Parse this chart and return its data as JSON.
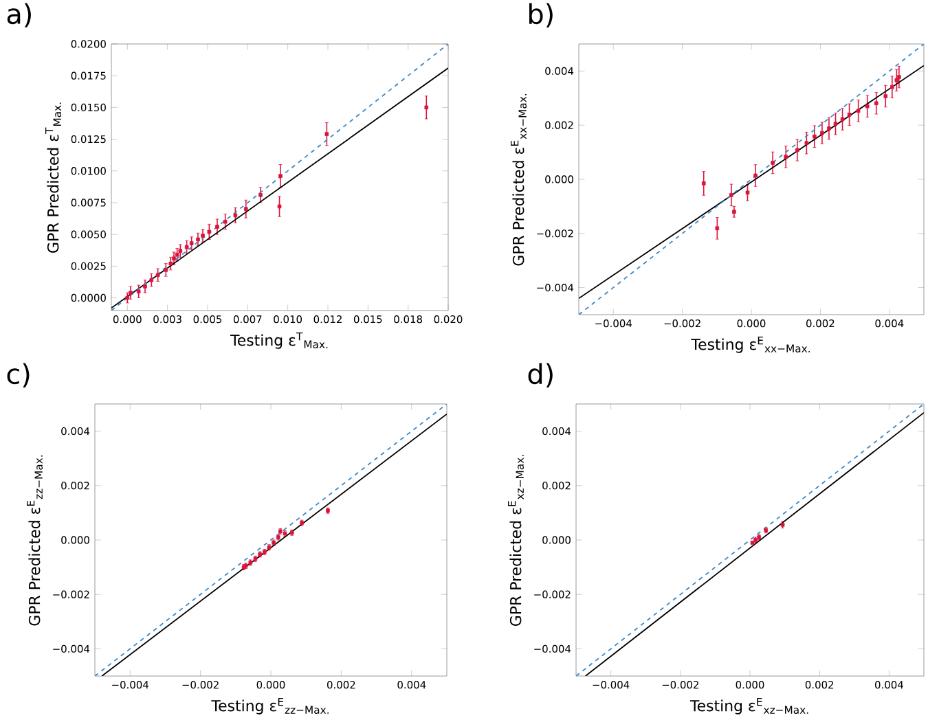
{
  "chart_data": [
    {
      "type": "scatter",
      "title": "a)",
      "xlabel": "Testing ε$^{T}$$_{Max.}$",
      "ylabel": "GPR Predicted ε$^{T}$$_{Max.}$",
      "xlim": [
        -0.001,
        0.02
      ],
      "ylim": [
        -0.001,
        0.02
      ],
      "xticks": [
        {
          "value": 0,
          "label": "0.000"
        },
        {
          "value": 0.0025,
          "label": "0.003"
        },
        {
          "value": 0.005,
          "label": "0.005"
        },
        {
          "value": 0.0075,
          "label": "0.007"
        },
        {
          "value": 0.01,
          "label": "0.010"
        },
        {
          "value": 0.0125,
          "label": "0.012"
        },
        {
          "value": 0.015,
          "label": "0.015"
        },
        {
          "value": 0.0175,
          "label": "0.018"
        },
        {
          "value": 0.02,
          "label": "0.020"
        }
      ],
      "yticks": [
        {
          "value": 0,
          "label": "0.0000"
        },
        {
          "value": 0.0025,
          "label": "0.0025"
        },
        {
          "value": 0.005,
          "label": "0.0050"
        },
        {
          "value": 0.0075,
          "label": "0.0075"
        },
        {
          "value": 0.01,
          "label": "0.0100"
        },
        {
          "value": 0.0125,
          "label": "0.0125"
        },
        {
          "value": 0.015,
          "label": "0.0150"
        },
        {
          "value": 0.0175,
          "label": "0.0175"
        },
        {
          "value": 0.02,
          "label": "0.0200"
        }
      ],
      "series": [
        {
          "type": "scatter",
          "color": "#dc143c",
          "marker": "square",
          "x": [
            0.01864,
            0.01243,
            0.00954,
            0.00948,
            0.0083,
            0.00739,
            0.00673,
            0.0061,
            0.0056,
            0.0051,
            0.0047,
            0.0044,
            0.004,
            0.0037,
            0.0033,
            0.0031,
            0.0029,
            0.0027,
            0.0024,
            0.0019,
            0.0015,
            0.0011,
            0.0007,
            0.0002,
            0.0
          ],
          "values": [
            0.015,
            0.0129,
            0.0096,
            0.0072,
            0.0081,
            0.007,
            0.0065,
            0.006,
            0.0056,
            0.0052,
            0.0049,
            0.0046,
            0.0043,
            0.004,
            0.0037,
            0.0034,
            0.0031,
            0.0027,
            0.0022,
            0.0018,
            0.0014,
            0.0009,
            0.0005,
            0.0004,
            0.0
          ],
          "errors": [
            0.0009,
            0.0009,
            0.0009,
            0.0008,
            0.0006,
            0.0007,
            0.0006,
            0.0006,
            0.0006,
            0.0006,
            0.0005,
            0.0005,
            0.0005,
            0.0005,
            0.0005,
            0.0005,
            0.0005,
            0.0005,
            0.0005,
            0.0005,
            0.0005,
            0.0005,
            0.0005,
            0.0005,
            0.0004
          ]
        },
        {
          "type": "line",
          "color": "#000000",
          "line_style": "solid",
          "x": [
            -0.001,
            0.02
          ],
          "values": [
            -0.0008,
            0.0181
          ]
        },
        {
          "type": "line",
          "color": "#3a87c8",
          "line_style": "dashed",
          "x": [
            -0.001,
            0.02
          ],
          "values": [
            -0.001,
            0.02
          ]
        }
      ]
    },
    {
      "type": "scatter",
      "title": "b)",
      "xlabel": "Testing ε$^{E}$$_{xx−Max.}$",
      "ylabel": "GPR Predicted ε$^{E}$$_{xx−Max.}$",
      "xlim": [
        -0.005,
        0.005
      ],
      "ylim": [
        -0.005,
        0.005
      ],
      "xticks": [
        {
          "value": -0.004,
          "label": "−0.004"
        },
        {
          "value": -0.002,
          "label": "−0.002"
        },
        {
          "value": 0,
          "label": "0.000"
        },
        {
          "value": 0.002,
          "label": "0.002"
        },
        {
          "value": 0.004,
          "label": "0.004"
        }
      ],
      "yticks": [
        {
          "value": -0.004,
          "label": "−0.004"
        },
        {
          "value": -0.002,
          "label": "−0.002"
        },
        {
          "value": 0,
          "label": "0.000"
        },
        {
          "value": 0.002,
          "label": "0.002"
        },
        {
          "value": 0.004,
          "label": "0.004"
        }
      ],
      "series": [
        {
          "type": "scatter",
          "color": "#dc143c",
          "marker": "square",
          "x": [
            -0.00138,
            -0.00099,
            -0.00058,
            -0.0005,
            -0.00011,
            0.00012,
            0.00062,
            0.001,
            0.00133,
            0.0016,
            0.00183,
            0.00205,
            0.00225,
            0.00244,
            0.00264,
            0.00284,
            0.0031,
            0.00336,
            0.00362,
            0.00389,
            0.00408,
            0.00421,
            0.00428
          ],
          "values": [
            -0.00015,
            -0.00181,
            -0.00058,
            -0.0012,
            -0.00049,
            0.00014,
            0.00061,
            0.00083,
            0.00108,
            0.00134,
            0.00158,
            0.00171,
            0.00188,
            0.00205,
            0.00222,
            0.00239,
            0.00253,
            0.0027,
            0.00281,
            0.00307,
            0.00341,
            0.00366,
            0.00378
          ],
          "errors": [
            0.00044,
            0.0004,
            0.0004,
            0.0002,
            0.0003,
            0.0004,
            0.0004,
            0.0004,
            0.0004,
            0.0004,
            0.0004,
            0.0004,
            0.0004,
            0.0004,
            0.0004,
            0.0004,
            0.0004,
            0.0004,
            0.0004,
            0.0004,
            0.0004,
            0.0004,
            0.0004
          ]
        },
        {
          "type": "line",
          "color": "#000000",
          "line_style": "solid",
          "x": [
            -0.005,
            0.005
          ],
          "values": [
            -0.0044,
            0.0042
          ]
        },
        {
          "type": "line",
          "color": "#3a87c8",
          "line_style": "dashed",
          "x": [
            -0.005,
            0.005
          ],
          "values": [
            -0.005,
            0.005
          ]
        }
      ]
    },
    {
      "type": "scatter",
      "title": "c)",
      "xlabel": "Testing ε$^{E}$$_{zz−Max.}$",
      "ylabel": "GPR Predicted ε$^{E}$$_{zz−Max.}$",
      "xlim": [
        -0.005,
        0.005
      ],
      "ylim": [
        -0.005,
        0.005
      ],
      "xticks": [
        {
          "value": -0.004,
          "label": "−0.004"
        },
        {
          "value": -0.002,
          "label": "−0.002"
        },
        {
          "value": 0,
          "label": "0.000"
        },
        {
          "value": 0.002,
          "label": "0.002"
        },
        {
          "value": 0.004,
          "label": "0.004"
        }
      ],
      "yticks": [
        {
          "value": -0.004,
          "label": "−0.004"
        },
        {
          "value": -0.002,
          "label": "−0.002"
        },
        {
          "value": 0,
          "label": "0.000"
        },
        {
          "value": 0.002,
          "label": "0.002"
        },
        {
          "value": 0.004,
          "label": "0.004"
        }
      ],
      "series": [
        {
          "type": "scatter",
          "color": "#dc143c",
          "marker": "square",
          "x": [
            0.00162,
            0.00088,
            0.0006,
            0.0004,
            0.00027,
            0.00021,
            8e-05,
            -5e-05,
            -0.00018,
            -0.00031,
            -0.00044,
            -0.00058,
            -0.00071,
            -0.00077
          ],
          "values": [
            0.00108,
            0.00063,
            0.00027,
            0.00024,
            0.00032,
            0.0001,
            -0.0001,
            -0.00027,
            -0.00044,
            -0.00053,
            -0.00069,
            -0.00083,
            -0.00095,
            -0.001
          ],
          "errors": [
            0.0001,
            0.0001,
            0.0001,
            0.0001,
            0.0001,
            0.0001,
            0.0001,
            0.0001,
            0.0001,
            0.0001,
            0.0001,
            0.0001,
            0.0001,
            0.0001
          ]
        },
        {
          "type": "line",
          "color": "#000000",
          "line_style": "solid",
          "x": [
            -0.0048,
            0.005
          ],
          "values": [
            -0.005,
            0.00463
          ]
        },
        {
          "type": "line",
          "color": "#3a87c8",
          "line_style": "dashed",
          "x": [
            -0.005,
            0.005
          ],
          "values": [
            -0.005,
            0.005
          ]
        }
      ]
    },
    {
      "type": "scatter",
      "title": "d)",
      "xlabel": "Testing ε$^{E}$$_{xz−Max.}$",
      "ylabel": "GPR Predicted ε$^{E}$$_{xz−Max.}$",
      "xlim": [
        -0.005,
        0.005
      ],
      "ylim": [
        -0.005,
        0.005
      ],
      "xticks": [
        {
          "value": -0.004,
          "label": "−0.004"
        },
        {
          "value": -0.002,
          "label": "−0.002"
        },
        {
          "value": 0,
          "label": "0.000"
        },
        {
          "value": 0.002,
          "label": "0.002"
        },
        {
          "value": 0.004,
          "label": "0.004"
        }
      ],
      "yticks": [
        {
          "value": -0.004,
          "label": "−0.004"
        },
        {
          "value": -0.002,
          "label": "−0.002"
        },
        {
          "value": 0,
          "label": "0.000"
        },
        {
          "value": 0.002,
          "label": "0.002"
        },
        {
          "value": 0.004,
          "label": "0.004"
        }
      ],
      "series": [
        {
          "type": "scatter",
          "color": "#dc143c",
          "marker": "square",
          "x": [
            0.00094,
            0.00046,
            0.00026,
            0.00016,
            7e-05
          ],
          "values": [
            0.00056,
            0.00036,
            0.0001,
            0.0,
            -0.0001
          ],
          "errors": [
            0.00012,
            0.0001,
            0.0001,
            0.0001,
            5e-05
          ]
        },
        {
          "type": "line",
          "color": "#000000",
          "line_style": "solid",
          "x": [
            -0.00473,
            0.005
          ],
          "values": [
            -0.005,
            0.00468
          ]
        },
        {
          "type": "line",
          "color": "#3a87c8",
          "line_style": "dashed",
          "x": [
            -0.005,
            0.005
          ],
          "values": [
            -0.005,
            0.005
          ]
        }
      ]
    }
  ]
}
